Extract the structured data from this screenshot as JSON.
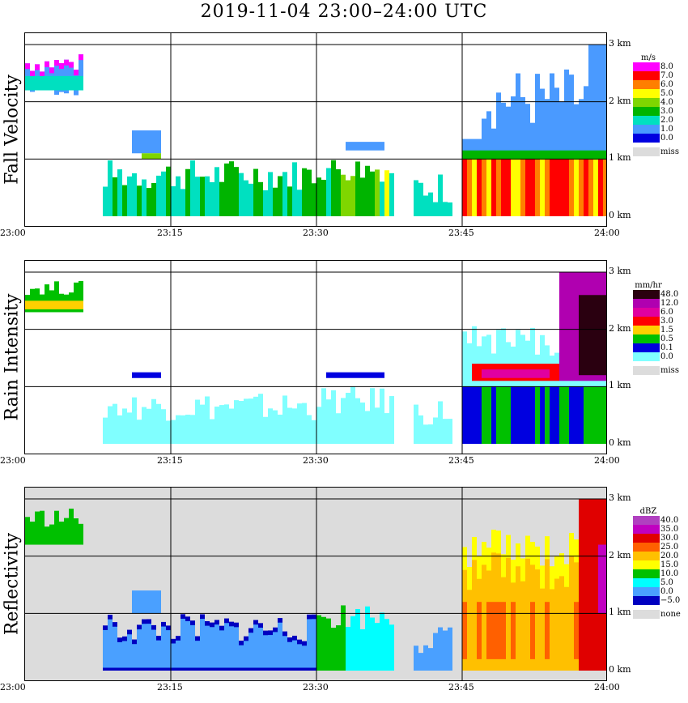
{
  "title": "2019-11-04   23:00–24:00 UTC",
  "x_tick_labels": [
    "23:00",
    "23:15",
    "23:30",
    "23:45",
    "24:00"
  ],
  "y_tick_labels": [
    "0 km",
    "1 km",
    "2 km",
    "3 km"
  ],
  "panels": [
    {
      "id": "fall",
      "ylabel": "Fall Velocity",
      "unit": "m/s",
      "legend": [
        {
          "label": "8.0",
          "color": "#ff00ff"
        },
        {
          "label": "7.0",
          "color": "#ff0000"
        },
        {
          "label": "6.0",
          "color": "#ff7f00"
        },
        {
          "label": "5.0",
          "color": "#ffff00"
        },
        {
          "label": "4.0",
          "color": "#7fd600"
        },
        {
          "label": "3.0",
          "color": "#00b400"
        },
        {
          "label": "2.0",
          "color": "#00e0c0"
        },
        {
          "label": "1.0",
          "color": "#4a9aff"
        },
        {
          "label": "0.0",
          "color": "#0000e0"
        }
      ],
      "miss_label": "miss"
    },
    {
      "id": "rain",
      "ylabel": "Rain Intensity",
      "unit": "mm/hr",
      "legend": [
        {
          "label": "48.0",
          "color": "#2a0010"
        },
        {
          "label": "12.0",
          "color": "#b000b0"
        },
        {
          "label": "6.0",
          "color": "#e000a0"
        },
        {
          "label": "3.0",
          "color": "#ff0000"
        },
        {
          "label": "1.5",
          "color": "#ffd000"
        },
        {
          "label": "0.5",
          "color": "#00c000"
        },
        {
          "label": "0.1",
          "color": "#0000e0"
        },
        {
          "label": "0.0",
          "color": "#80ffff"
        }
      ],
      "miss_label": "miss"
    },
    {
      "id": "refl",
      "ylabel": "Reflectivity",
      "unit": "dBZ",
      "legend": [
        {
          "label": "40.0",
          "color": "#b040c0"
        },
        {
          "label": "35.0",
          "color": "#c000c0"
        },
        {
          "label": "30.0",
          "color": "#e00000"
        },
        {
          "label": "25.0",
          "color": "#ff6000"
        },
        {
          "label": "20.0",
          "color": "#ffc000"
        },
        {
          "label": "15.0",
          "color": "#ffff00"
        },
        {
          "label": "10.0",
          "color": "#00c000"
        },
        {
          "label": "5.0",
          "color": "#00ffff"
        },
        {
          "label": "0.0",
          "color": "#4aa0ff"
        },
        {
          "label": "−5.0",
          "color": "#0000c0"
        }
      ],
      "miss_label": "none"
    }
  ],
  "chart_data": [
    {
      "type": "heatmap",
      "title": "Fall Velocity",
      "unit": "m/s",
      "x": "time UTC 23:00–24:00",
      "y": "height 0–3 km",
      "xlim": [
        "23:00",
        "24:00"
      ],
      "ylim_km": [
        0,
        3
      ],
      "features": [
        {
          "t_start_min": 0,
          "t_end_min": 6,
          "base_km": 2.2,
          "top_km": 2.8,
          "value": 2.0
        },
        {
          "t_start_min": 8,
          "t_end_min": 30,
          "base_km": 0.0,
          "top_km": 1.0,
          "value": 3.0
        },
        {
          "t_start_min": 30,
          "t_end_min": 38,
          "base_km": 0.0,
          "top_km": 1.0,
          "value": 4.0
        },
        {
          "t_start_min": 45,
          "t_end_min": 60,
          "base_km": 0.0,
          "top_km": 1.1,
          "value": 7.0
        },
        {
          "t_start_min": 45,
          "t_end_min": 60,
          "base_km": 1.1,
          "top_km": 2.6,
          "value": 1.5
        }
      ]
    },
    {
      "type": "heatmap",
      "title": "Rain Intensity",
      "unit": "mm/hr",
      "x": "time UTC 23:00–24:00",
      "y": "height 0–3 km",
      "xlim": [
        "23:00",
        "24:00"
      ],
      "ylim_km": [
        0,
        3
      ],
      "features": [
        {
          "t_start_min": 0,
          "t_end_min": 6,
          "base_km": 2.2,
          "top_km": 2.8,
          "value": 1.5
        },
        {
          "t_start_min": 8,
          "t_end_min": 38,
          "base_km": 0.0,
          "top_km": 1.0,
          "value": 0.1
        },
        {
          "t_start_min": 45,
          "t_end_min": 60,
          "base_km": 1.1,
          "top_km": 1.3,
          "value": 6.0
        },
        {
          "t_start_min": 56,
          "t_end_min": 60,
          "base_km": 1.0,
          "top_km": 3.0,
          "value": 48.0
        }
      ]
    },
    {
      "type": "heatmap",
      "title": "Reflectivity",
      "unit": "dBZ",
      "x": "time UTC 23:00–24:00",
      "y": "height 0–3 km",
      "xlim": [
        "23:00",
        "24:00"
      ],
      "ylim_km": [
        0,
        3
      ],
      "features": [
        {
          "t_start_min": 0,
          "t_end_min": 6,
          "base_km": 2.2,
          "top_km": 2.8,
          "value": 10.0
        },
        {
          "t_start_min": 8,
          "t_end_min": 30,
          "base_km": 0.0,
          "top_km": 1.0,
          "value": 0.0
        },
        {
          "t_start_min": 30,
          "t_end_min": 38,
          "base_km": 0.0,
          "top_km": 1.2,
          "value": 10.0
        },
        {
          "t_start_min": 45,
          "t_end_min": 60,
          "base_km": 0.0,
          "top_km": 2.5,
          "value": 25.0
        },
        {
          "t_start_min": 58,
          "t_end_min": 60,
          "base_km": 0.0,
          "top_km": 3.0,
          "value": 35.0
        }
      ]
    }
  ]
}
